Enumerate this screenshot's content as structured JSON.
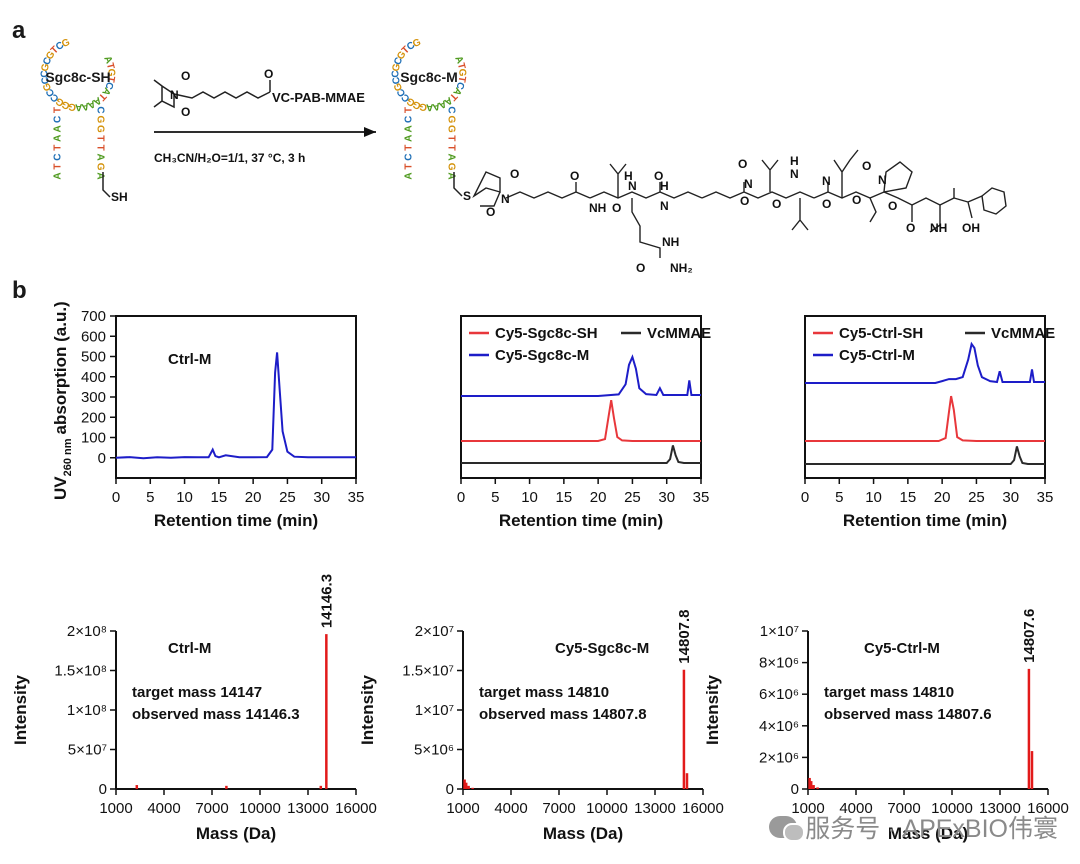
{
  "panel_labels": {
    "a": "a",
    "b": "b"
  },
  "scheme": {
    "reactant_name": "Sgc8c-SH",
    "product_name": "Sgc8c-M",
    "reagent_label": "VC-PAB-MMAE",
    "conditions": "CH₃CN/H₂O=1/1, 37 °C, 3 h",
    "thiol": "SH",
    "aptamer_bases": [
      "A",
      "T",
      "C",
      "T",
      "A",
      "A",
      "C",
      "T",
      "G",
      "C",
      "T",
      "G",
      "C",
      "G",
      "C",
      "C",
      "G",
      "C",
      "C",
      "G",
      "G",
      "G",
      "A",
      "A",
      "A",
      "A",
      "T",
      "A",
      "C",
      "T",
      "G",
      "T",
      "A",
      "C",
      "G",
      "G",
      "T",
      "T",
      "A",
      "G",
      "A"
    ],
    "atoms": {
      "S": "S",
      "O": "O",
      "N": "N",
      "NH": "NH",
      "H": "H",
      "OH": "OH",
      "NH2": "NH₂"
    },
    "colors": {
      "A": "#4e9a1e",
      "T": "#d94f2a",
      "C": "#1f6fb6",
      "G": "#d4920a"
    }
  },
  "hplc": {
    "ylabel_main": "UV",
    "ylabel_sub": "260 nm",
    "ylabel_rest": "absorption (a.u.)",
    "xlabel": "Retention time (min)",
    "xticks": [
      0,
      5,
      10,
      15,
      20,
      25,
      30,
      35
    ],
    "yticks": [
      0,
      100,
      200,
      300,
      400,
      500,
      600,
      700
    ]
  },
  "ms": {
    "ylabel": "Intensity",
    "xlabel": "Mass (Da)",
    "xticks": [
      1000,
      4000,
      7000,
      10000,
      13000,
      16000
    ]
  },
  "chart_data": [
    {
      "type": "line",
      "title": "Ctrl-M",
      "xlabel": "Retention time (min)",
      "ylabel": "UV260 nm absorption (a.u.)",
      "xlim": [
        0,
        35
      ],
      "ylim": [
        -100,
        700
      ],
      "series": [
        {
          "name": "Ctrl-M",
          "color": "#1d1dc8",
          "x": [
            0,
            2,
            4,
            6,
            8,
            10,
            12,
            13.5,
            14.1,
            14.5,
            15,
            16,
            18,
            20,
            22,
            22.8,
            23.2,
            23.5,
            23.9,
            24.3,
            25,
            26,
            28,
            30,
            35
          ],
          "y": [
            0,
            3,
            -2,
            2,
            0,
            3,
            2,
            2,
            40,
            8,
            2,
            12,
            2,
            2,
            3,
            40,
            420,
            520,
            320,
            130,
            30,
            5,
            2,
            2,
            2
          ]
        }
      ]
    },
    {
      "type": "line",
      "xlabel": "Retention time (min)",
      "xlim": [
        0,
        35
      ],
      "legend": [
        "Cy5-Sgc8c-SH",
        "VcMMAE",
        "Cy5-Sgc8c-M"
      ],
      "series": [
        {
          "name": "Cy5-Sgc8c-M",
          "color": "#1d1dc8",
          "x": [
            0,
            20,
            23,
            24,
            24.5,
            25,
            25.5,
            26,
            27,
            28.5,
            29,
            29.5,
            31,
            33,
            33.3,
            33.6,
            35
          ],
          "y": [
            0,
            0,
            8,
            60,
            160,
            200,
            140,
            40,
            10,
            5,
            40,
            5,
            5,
            5,
            80,
            5,
            5
          ]
        },
        {
          "name": "Cy5-Sgc8c-SH",
          "color": "#e8373b",
          "x": [
            0,
            20,
            21,
            21.5,
            21.9,
            22.3,
            22.8,
            23.5,
            25,
            35
          ],
          "y": [
            0,
            0,
            10,
            120,
            210,
            120,
            20,
            3,
            0,
            0
          ]
        },
        {
          "name": "VcMMAE",
          "color": "#2a2a2a",
          "x": [
            0,
            30,
            30.5,
            30.9,
            31.3,
            31.7,
            32.5,
            35
          ],
          "y": [
            0,
            0,
            20,
            90,
            40,
            5,
            0,
            0
          ]
        }
      ]
    },
    {
      "type": "line",
      "xlabel": "Retention time (min)",
      "xlim": [
        0,
        35
      ],
      "legend": [
        "Cy5-Ctrl-SH",
        "VcMMAE",
        "Cy5-Ctrl-M"
      ],
      "series": [
        {
          "name": "Cy5-Ctrl-M",
          "color": "#1d1dc8",
          "x": [
            0,
            19,
            20,
            21,
            22,
            23,
            23.8,
            24.3,
            24.7,
            25.2,
            25.8,
            27,
            28,
            28.4,
            28.8,
            31,
            32.8,
            33.1,
            33.4,
            35
          ],
          "y": [
            0,
            0,
            10,
            20,
            20,
            30,
            120,
            200,
            180,
            90,
            30,
            10,
            5,
            60,
            5,
            5,
            5,
            70,
            5,
            5
          ]
        },
        {
          "name": "Cy5-Ctrl-SH",
          "color": "#e8373b",
          "x": [
            0,
            19.5,
            20.5,
            21,
            21.3,
            21.7,
            22.2,
            23,
            25,
            35
          ],
          "y": [
            0,
            0,
            15,
            150,
            230,
            160,
            20,
            3,
            0,
            0
          ]
        },
        {
          "name": "VcMMAE",
          "color": "#2a2a2a",
          "x": [
            0,
            30,
            30.5,
            30.9,
            31.3,
            31.7,
            32.5,
            35
          ],
          "y": [
            0,
            0,
            20,
            90,
            40,
            5,
            0,
            0
          ]
        }
      ]
    },
    {
      "type": "bar",
      "title": "Ctrl-M",
      "xlabel": "Mass (Da)",
      "ylabel": "Intensity",
      "xlim": [
        1000,
        16000
      ],
      "ylim": [
        0,
        200000000
      ],
      "yticks": [
        "0",
        "5×10⁷",
        "1×10⁸",
        "1.5×10⁸",
        "2×10⁸"
      ],
      "ytick_values": [
        0,
        50000000,
        100000000,
        150000000,
        200000000
      ],
      "peak_label": "14146.3",
      "annotations": [
        "target mass 14147",
        "observed mass 14146.3"
      ],
      "x": [
        2300,
        7900,
        13800,
        14146.3
      ],
      "y": [
        5000000,
        4000000,
        4000000,
        196000000
      ]
    },
    {
      "type": "bar",
      "title": "Cy5-Sgc8c-M",
      "xlabel": "Mass (Da)",
      "ylabel": "Intensity",
      "xlim": [
        1000,
        16000
      ],
      "ylim": [
        0,
        20000000
      ],
      "yticks": [
        "0",
        "5×10⁶",
        "1×10⁷",
        "1.5×10⁷",
        "2×10⁷"
      ],
      "ytick_values": [
        0,
        5000000,
        10000000,
        15000000,
        20000000
      ],
      "peak_label": "14807.8",
      "annotations": [
        "target mass 14810",
        "observed mass 14807.8"
      ],
      "x": [
        1100,
        1200,
        1350,
        1600,
        14807.8,
        15000
      ],
      "y": [
        1200000,
        800000,
        400000,
        150000,
        15100000,
        2000000
      ]
    },
    {
      "type": "bar",
      "title": "Cy5-Ctrl-M",
      "xlabel": "Mass (Da)",
      "ylabel": "Intensity",
      "xlim": [
        1000,
        16000
      ],
      "ylim": [
        0,
        10000000
      ],
      "yticks": [
        "0",
        "2×10⁶",
        "4×10⁶",
        "6×10⁶",
        "8×10⁶",
        "1×10⁷"
      ],
      "ytick_values": [
        0,
        2000000,
        4000000,
        6000000,
        8000000,
        10000000
      ],
      "peak_label": "14807.6",
      "annotations": [
        "target mass 14810",
        "observed mass 14807.6"
      ],
      "x": [
        1100,
        1200,
        1350,
        1600,
        14807.6,
        15000
      ],
      "y": [
        700000,
        500000,
        250000,
        100000,
        7600000,
        2400000
      ]
    }
  ],
  "watermark": "服务号 · APExBIO伟寰"
}
